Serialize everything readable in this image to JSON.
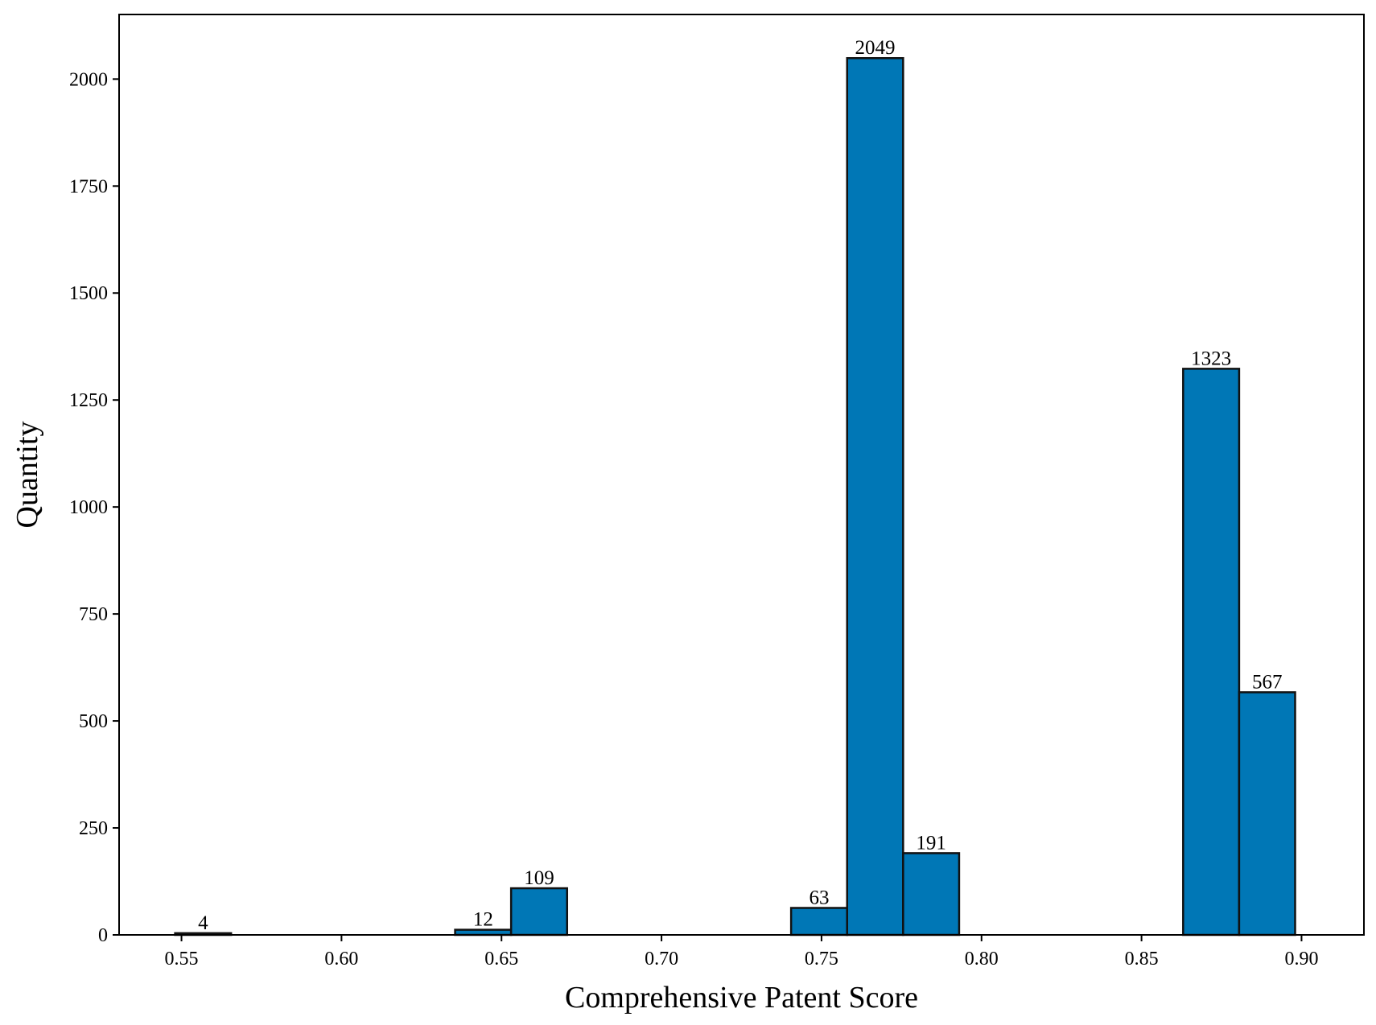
{
  "chart_data": {
    "type": "bar",
    "title": "",
    "xlabel": "Comprehensive Patent Score",
    "ylabel": "Quantity",
    "xlim": [
      0.5305,
      0.9195
    ],
    "ylim": [
      0,
      2151
    ],
    "xticks": [
      "0.55",
      "0.60",
      "0.65",
      "0.70",
      "0.75",
      "0.80",
      "0.85",
      "0.90"
    ],
    "yticks": [
      "0",
      "250",
      "500",
      "750",
      "1000",
      "1250",
      "1500",
      "1750",
      "2000"
    ],
    "bar_color": "#0077b6",
    "edge_color": "#111111",
    "grid": false,
    "bins": [
      {
        "x_start": 0.548,
        "x_end": 0.5655,
        "value": 4,
        "label": "4"
      },
      {
        "x_start": 0.5655,
        "x_end": 0.583,
        "value": 0,
        "label": ""
      },
      {
        "x_start": 0.583,
        "x_end": 0.6005,
        "value": 0,
        "label": ""
      },
      {
        "x_start": 0.6005,
        "x_end": 0.618,
        "value": 0,
        "label": ""
      },
      {
        "x_start": 0.618,
        "x_end": 0.6355,
        "value": 0,
        "label": ""
      },
      {
        "x_start": 0.6355,
        "x_end": 0.653,
        "value": 12,
        "label": "12"
      },
      {
        "x_start": 0.653,
        "x_end": 0.6705,
        "value": 109,
        "label": "109"
      },
      {
        "x_start": 0.6705,
        "x_end": 0.688,
        "value": 0,
        "label": ""
      },
      {
        "x_start": 0.688,
        "x_end": 0.7055,
        "value": 0,
        "label": ""
      },
      {
        "x_start": 0.7055,
        "x_end": 0.723,
        "value": 0,
        "label": ""
      },
      {
        "x_start": 0.723,
        "x_end": 0.7405,
        "value": 0,
        "label": ""
      },
      {
        "x_start": 0.7405,
        "x_end": 0.758,
        "value": 63,
        "label": "63"
      },
      {
        "x_start": 0.758,
        "x_end": 0.7755,
        "value": 2049,
        "label": "2049"
      },
      {
        "x_start": 0.7755,
        "x_end": 0.793,
        "value": 191,
        "label": "191"
      },
      {
        "x_start": 0.793,
        "x_end": 0.8105,
        "value": 0,
        "label": ""
      },
      {
        "x_start": 0.8105,
        "x_end": 0.828,
        "value": 0,
        "label": ""
      },
      {
        "x_start": 0.828,
        "x_end": 0.8455,
        "value": 0,
        "label": ""
      },
      {
        "x_start": 0.8455,
        "x_end": 0.863,
        "value": 0,
        "label": ""
      },
      {
        "x_start": 0.863,
        "x_end": 0.8805,
        "value": 1323,
        "label": "1323"
      },
      {
        "x_start": 0.8805,
        "x_end": 0.898,
        "value": 567,
        "label": "567"
      }
    ]
  }
}
